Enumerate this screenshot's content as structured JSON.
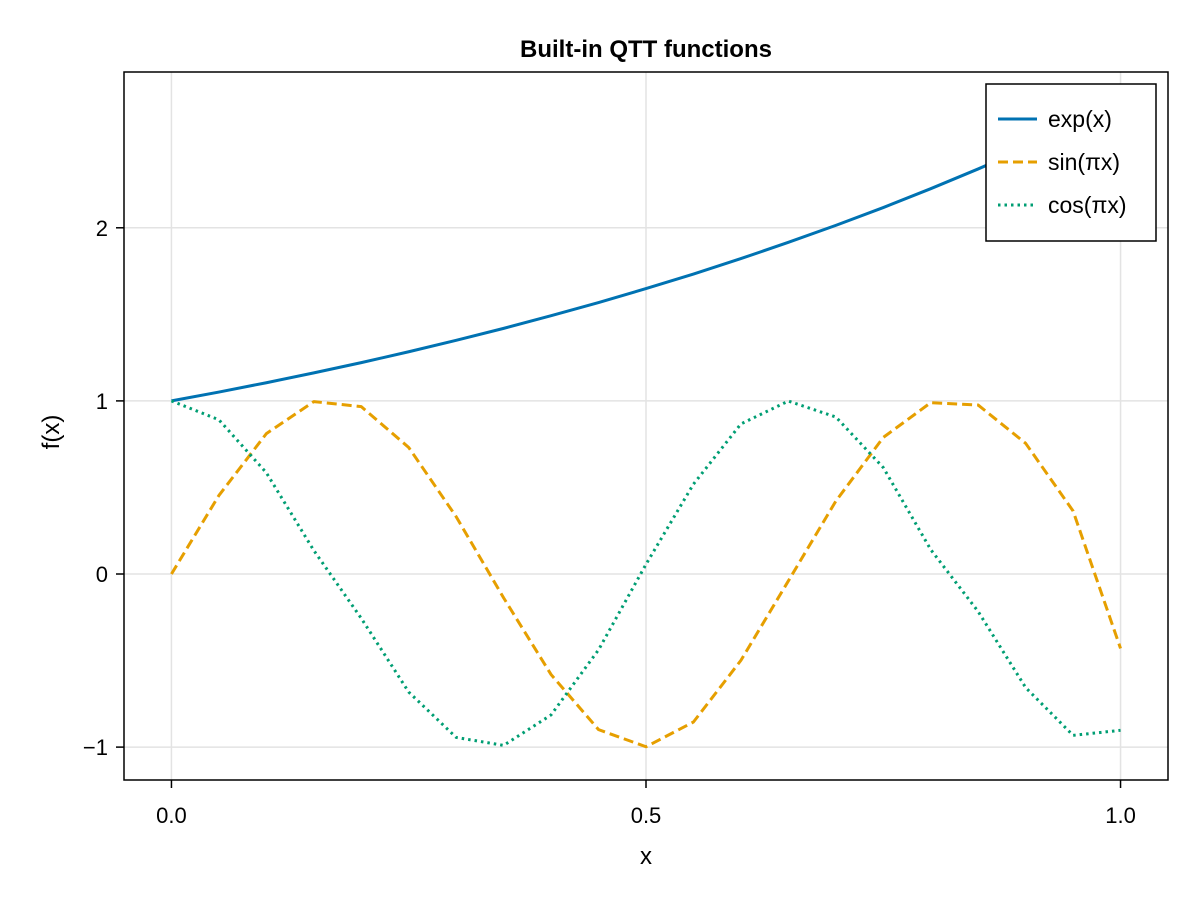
{
  "chart_data": {
    "type": "line",
    "title": "Built-in QTT functions",
    "xlabel": "x",
    "ylabel": "f(x)",
    "xlim": [
      -0.05,
      1.05
    ],
    "ylim": [
      -1.19,
      2.9
    ],
    "x_ticks": [
      0.0,
      0.5,
      1.0
    ],
    "x_tick_labels": [
      "0.0",
      "0.5",
      "1.0"
    ],
    "y_ticks": [
      -1,
      0,
      1,
      2
    ],
    "y_tick_labels": [
      "−1",
      "0",
      "1",
      "2"
    ],
    "grid": true,
    "legend_position": "top-right",
    "x": [
      0.0,
      0.05,
      0.1,
      0.15,
      0.2,
      0.25,
      0.3,
      0.35,
      0.4,
      0.45,
      0.5,
      0.55,
      0.6,
      0.65,
      0.7,
      0.75,
      0.8,
      0.85,
      0.9,
      0.95,
      1.0
    ],
    "series": [
      {
        "name": "exp(x)",
        "color": "#0072b2",
        "dash": "solid",
        "values": [
          1.0,
          1.051,
          1.105,
          1.162,
          1.221,
          1.284,
          1.35,
          1.419,
          1.492,
          1.568,
          1.649,
          1.733,
          1.822,
          1.916,
          2.014,
          2.117,
          2.226,
          2.34,
          2.46,
          2.586,
          2.718
        ]
      },
      {
        "name": "sin(πx)",
        "color": "#e69f00",
        "dash": "dashed",
        "values": [
          0.0,
          0.454,
          0.811,
          0.996,
          0.967,
          0.731,
          0.331,
          -0.138,
          -0.581,
          -0.899,
          -0.998,
          -0.855,
          -0.499,
          -0.04,
          0.421,
          0.789,
          0.99,
          0.976,
          0.755,
          0.364,
          -0.43
        ]
      },
      {
        "name": "cos(πx)",
        "color": "#009e73",
        "dash": "dotted",
        "values": [
          1.0,
          0.891,
          0.585,
          0.136,
          -0.256,
          -0.682,
          -0.944,
          -0.99,
          -0.814,
          -0.438,
          0.056,
          0.519,
          0.867,
          0.999,
          0.907,
          0.615,
          0.141,
          -0.217,
          -0.656,
          -0.932,
          -0.903
        ]
      }
    ]
  }
}
